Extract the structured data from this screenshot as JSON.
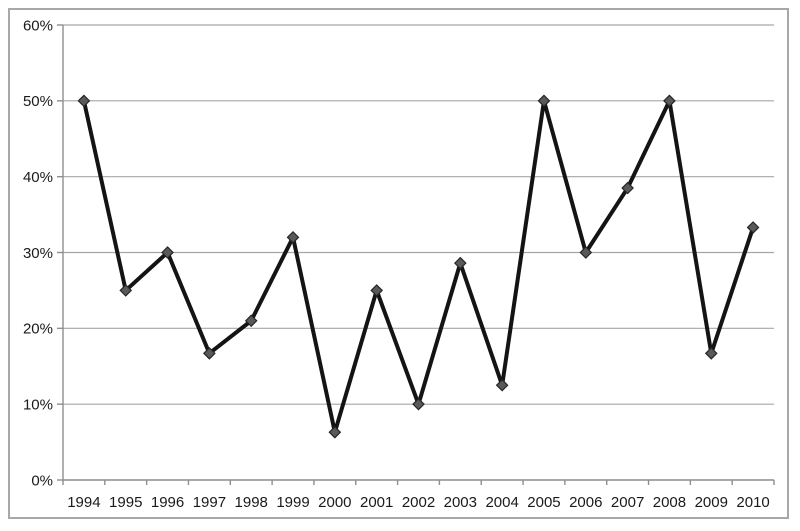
{
  "chart_data": {
    "type": "line",
    "title": "",
    "xlabel": "",
    "ylabel": "",
    "x": [
      "1994",
      "1995",
      "1996",
      "1997",
      "1998",
      "1999",
      "2000",
      "2001",
      "2002",
      "2003",
      "2004",
      "2005",
      "2006",
      "2007",
      "2008",
      "2009",
      "2010"
    ],
    "values": [
      50,
      25,
      30,
      16.7,
      21,
      32,
      6.3,
      25,
      10,
      28.6,
      12.5,
      50,
      30,
      38.5,
      50,
      16.7,
      33.3
    ],
    "ylim": [
      0,
      60
    ],
    "ytick_step": 10,
    "ytick_labels": [
      "0%",
      "10%",
      "20%",
      "30%",
      "40%",
      "50%",
      "60%"
    ],
    "grid": true,
    "legend_position": "none",
    "marker_shape": "diamond"
  },
  "style": {
    "line_color": "#141414",
    "marker_fill": "#595959",
    "marker_stroke": "#262626",
    "gridline_color": "#a6a6a6",
    "axis_color": "#8e8e8e",
    "tick_label_color": "#1a1a1a",
    "frame_border_color": "#a8a8a8",
    "background_color": "#ffffff"
  }
}
